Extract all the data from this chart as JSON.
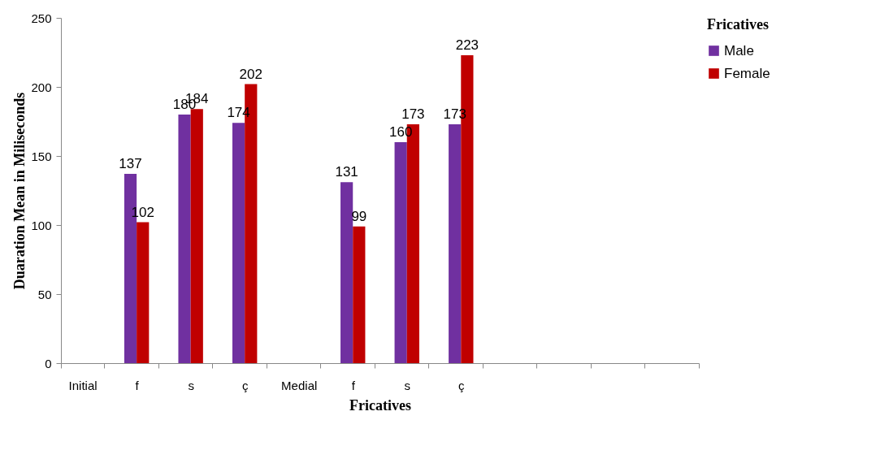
{
  "chart_data": {
    "type": "bar",
    "xlabel": "Fricatives",
    "ylabel": "Duaration Mean in Miliseconds",
    "legend_title": "Fricatives",
    "categories": [
      "Initial",
      "f",
      "s",
      "ç",
      "Medial",
      "f",
      "s",
      "ç",
      null,
      null,
      null,
      null
    ],
    "series": [
      {
        "name": "Male",
        "color": "#7030a0",
        "values": [
          null,
          137,
          180,
          174,
          null,
          131,
          160,
          173,
          null,
          null,
          null,
          null
        ]
      },
      {
        "name": "Female",
        "color": "#c00000",
        "values": [
          null,
          102,
          184,
          202,
          null,
          99,
          173,
          223,
          null,
          null,
          null,
          null
        ]
      }
    ],
    "ylim": [
      0,
      250
    ],
    "yticks": [
      0,
      50,
      100,
      150,
      200,
      250
    ],
    "grid": false,
    "legend": "right",
    "data_labels": true
  }
}
